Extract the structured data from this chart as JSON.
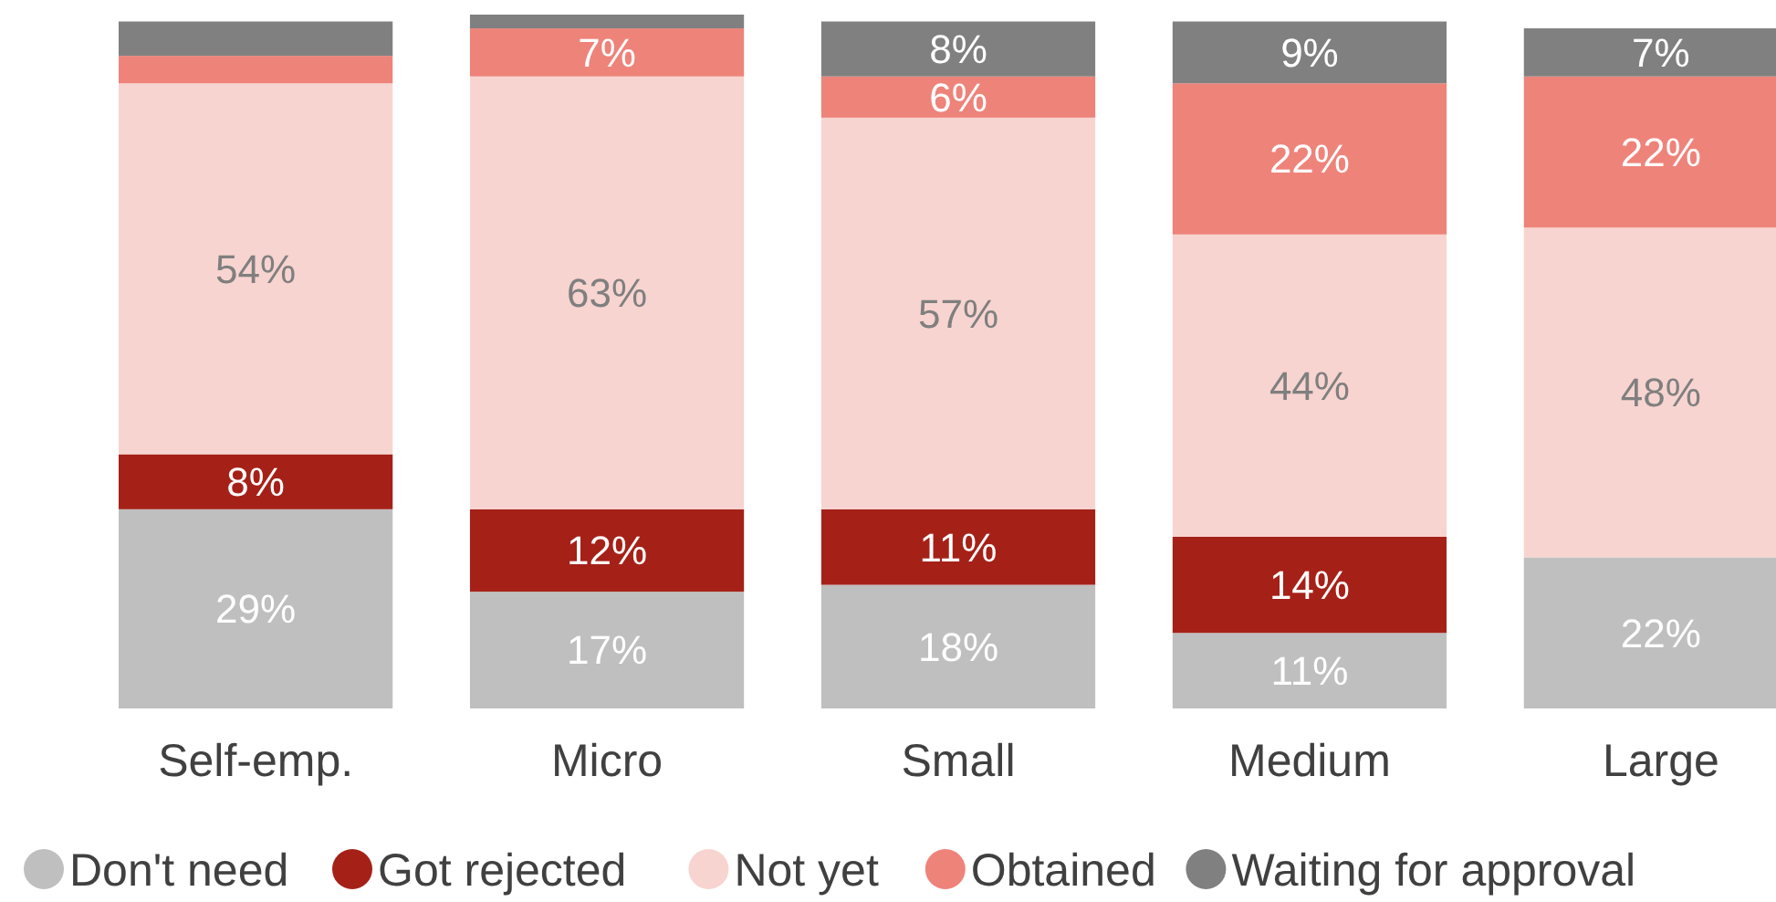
{
  "chart_data": {
    "type": "bar",
    "stacked": true,
    "legend": "bottom",
    "categories": [
      "Self-emp.",
      "Micro",
      "Small",
      "Medium",
      "Large"
    ],
    "series": [
      {
        "name": "Don't need",
        "color": "#bfbfbf",
        "values": [
          29,
          17,
          18,
          11,
          22
        ],
        "value_labels": [
          "29%",
          "17%",
          "18%",
          "11%",
          "22%"
        ]
      },
      {
        "name": "Got rejected",
        "color": "#a52118",
        "values": [
          8,
          12,
          11,
          14,
          null
        ],
        "value_labels": [
          "8%",
          "12%",
          "11%",
          "14%",
          null
        ]
      },
      {
        "name": "Not yet",
        "color": "#f7d4d0",
        "values": [
          54,
          63,
          57,
          44,
          48
        ],
        "value_labels": [
          "54%",
          "63%",
          "57%",
          "44%",
          "48%"
        ]
      },
      {
        "name": "Obtained",
        "color": "#ee837a",
        "values": [
          4,
          7,
          6,
          22,
          22
        ],
        "value_labels": [
          null,
          "7%",
          "6%",
          "22%",
          "22%"
        ]
      },
      {
        "name": "Waiting for approval",
        "color": "#808080",
        "values": [
          5,
          2,
          8,
          9,
          7
        ],
        "value_labels": [
          null,
          null,
          "8%",
          "9%",
          "7%"
        ]
      }
    ]
  }
}
